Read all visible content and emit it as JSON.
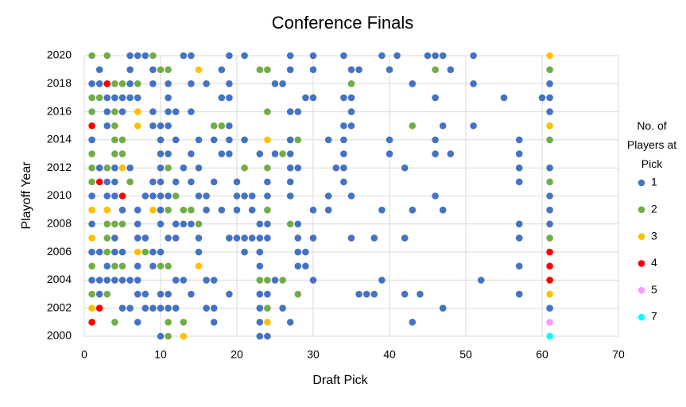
{
  "chart_data": {
    "type": "scatter",
    "title": "Conference Finals",
    "x_label": "Draft Pick",
    "y_label": "Playoff Year",
    "legend_title": "No. of Players at Pick",
    "xlim": [
      0,
      70
    ],
    "xticks": [
      0,
      10,
      20,
      30,
      40,
      50,
      60,
      70
    ],
    "ylim": [
      2000,
      2020
    ],
    "yticks": [
      2000,
      2002,
      2004,
      2006,
      2008,
      2010,
      2012,
      2014,
      2016,
      2018,
      2020
    ],
    "grid": true,
    "legend": "right",
    "series": [
      {
        "name": "1",
        "color": "#4472c4",
        "x": [
          6,
          7,
          8,
          13,
          14,
          19,
          21,
          27,
          30,
          34,
          39,
          41,
          45,
          46,
          47,
          51,
          2,
          6,
          9,
          18,
          27,
          30,
          35,
          36,
          40,
          48,
          1,
          2,
          6,
          9,
          11,
          14,
          16,
          19,
          25,
          26,
          43,
          51,
          61,
          3,
          4,
          5,
          6,
          7,
          11,
          18,
          19,
          29,
          30,
          34,
          35,
          46,
          55,
          60,
          61,
          3,
          5,
          9,
          11,
          12,
          14,
          27,
          28,
          35,
          61,
          3,
          9,
          10,
          11,
          19,
          34,
          35,
          47,
          51,
          1,
          10,
          12,
          15,
          17,
          19,
          21,
          27,
          32,
          34,
          40,
          46,
          57,
          10,
          11,
          14,
          18,
          19,
          23,
          25,
          27,
          34,
          40,
          46,
          48,
          57,
          2,
          4,
          6,
          10,
          13,
          15,
          27,
          28,
          33,
          34,
          42,
          57,
          61,
          3,
          4,
          9,
          10,
          12,
          14,
          17,
          20,
          24,
          27,
          34,
          57,
          1,
          3,
          4,
          8,
          9,
          10,
          11,
          15,
          16,
          20,
          21,
          22,
          24,
          27,
          32,
          35,
          46,
          61,
          5,
          7,
          10,
          16,
          18,
          20,
          22,
          30,
          32,
          39,
          43,
          47,
          61,
          1,
          7,
          10,
          12,
          13,
          14,
          23,
          24,
          28,
          57,
          61,
          4,
          7,
          8,
          11,
          12,
          15,
          19,
          20,
          21,
          22,
          23,
          24,
          28,
          30,
          35,
          38,
          42,
          57,
          1,
          2,
          4,
          5,
          9,
          10,
          15,
          21,
          23,
          28,
          29,
          3,
          7,
          9,
          23,
          28,
          29,
          57,
          1,
          2,
          3,
          4,
          5,
          6,
          7,
          12,
          13,
          16,
          17,
          25,
          30,
          39,
          52,
          2,
          7,
          8,
          10,
          11,
          14,
          19,
          23,
          24,
          36,
          37,
          38,
          42,
          44,
          57,
          5,
          6,
          8,
          9,
          10,
          11,
          12,
          16,
          17,
          23,
          26,
          47,
          61,
          7,
          17,
          23,
          27,
          43,
          10,
          23,
          24
        ],
        "values": [
          2020,
          2020,
          2020,
          2020,
          2020,
          2020,
          2020,
          2020,
          2020,
          2020,
          2020,
          2020,
          2020,
          2020,
          2020,
          2020,
          2019,
          2019,
          2019,
          2019,
          2019,
          2019,
          2019,
          2019,
          2019,
          2019,
          2018,
          2018,
          2018,
          2018,
          2018,
          2018,
          2018,
          2018,
          2018,
          2018,
          2018,
          2018,
          2018,
          2017,
          2017,
          2017,
          2017,
          2017,
          2017,
          2017,
          2017,
          2017,
          2017,
          2017,
          2017,
          2017,
          2017,
          2017,
          2017,
          2016,
          2016,
          2016,
          2016,
          2016,
          2016,
          2016,
          2016,
          2016,
          2016,
          2015,
          2015,
          2015,
          2015,
          2015,
          2015,
          2015,
          2015,
          2015,
          2014,
          2014,
          2014,
          2014,
          2014,
          2014,
          2014,
          2014,
          2014,
          2014,
          2014,
          2014,
          2014,
          2013,
          2013,
          2013,
          2013,
          2013,
          2013,
          2013,
          2013,
          2013,
          2013,
          2013,
          2013,
          2013,
          2012,
          2012,
          2012,
          2012,
          2012,
          2012,
          2012,
          2012,
          2012,
          2012,
          2012,
          2012,
          2012,
          2011,
          2011,
          2011,
          2011,
          2011,
          2011,
          2011,
          2011,
          2011,
          2011,
          2011,
          2011,
          2010,
          2010,
          2010,
          2010,
          2010,
          2010,
          2010,
          2010,
          2010,
          2010,
          2010,
          2010,
          2010,
          2010,
          2010,
          2010,
          2010,
          2010,
          2009,
          2009,
          2009,
          2009,
          2009,
          2009,
          2009,
          2009,
          2009,
          2009,
          2009,
          2009,
          2009,
          2008,
          2008,
          2008,
          2008,
          2008,
          2008,
          2008,
          2008,
          2008,
          2008,
          2008,
          2007,
          2007,
          2007,
          2007,
          2007,
          2007,
          2007,
          2007,
          2007,
          2007,
          2007,
          2007,
          2007,
          2007,
          2007,
          2007,
          2007,
          2007,
          2006,
          2006,
          2006,
          2006,
          2006,
          2006,
          2006,
          2006,
          2006,
          2006,
          2006,
          2005,
          2005,
          2005,
          2005,
          2005,
          2005,
          2005,
          2004,
          2004,
          2004,
          2004,
          2004,
          2004,
          2004,
          2004,
          2004,
          2004,
          2004,
          2004,
          2004,
          2004,
          2004,
          2003,
          2003,
          2003,
          2003,
          2003,
          2003,
          2003,
          2003,
          2003,
          2003,
          2003,
          2003,
          2003,
          2003,
          2003,
          2002,
          2002,
          2002,
          2002,
          2002,
          2002,
          2002,
          2002,
          2002,
          2002,
          2002,
          2002,
          2002,
          2001,
          2001,
          2001,
          2001,
          2001,
          2000,
          2000,
          2000
        ]
      },
      {
        "name": "2",
        "color": "#70ad47",
        "x": [
          1,
          3,
          9,
          10,
          11,
          23,
          24,
          46,
          61,
          4,
          5,
          7,
          35,
          1,
          2,
          1,
          4,
          24,
          4,
          17,
          18,
          43,
          4,
          5,
          28,
          61,
          1,
          4,
          5,
          26,
          1,
          3,
          11,
          21,
          24,
          1,
          6,
          61,
          12,
          11,
          13,
          14,
          24,
          3,
          4,
          5,
          15,
          27,
          3,
          61,
          3,
          8,
          1,
          4,
          5,
          10,
          11,
          23,
          24,
          26,
          1,
          3,
          28,
          24,
          4,
          11,
          13,
          11
        ],
        "values": [
          2020,
          2020,
          2020,
          2019,
          2019,
          2019,
          2019,
          2019,
          2019,
          2018,
          2018,
          2018,
          2018,
          2017,
          2017,
          2016,
          2016,
          2016,
          2015,
          2015,
          2015,
          2015,
          2014,
          2014,
          2014,
          2014,
          2013,
          2013,
          2013,
          2013,
          2012,
          2012,
          2012,
          2012,
          2012,
          2011,
          2011,
          2011,
          2010,
          2009,
          2009,
          2009,
          2009,
          2008,
          2008,
          2008,
          2008,
          2008,
          2007,
          2007,
          2006,
          2006,
          2005,
          2005,
          2005,
          2005,
          2005,
          2004,
          2004,
          2004,
          2003,
          2003,
          2003,
          2002,
          2001,
          2001,
          2001,
          2000
        ]
      },
      {
        "name": "3",
        "color": "#ffc000",
        "x": [
          61,
          15,
          7,
          7,
          61,
          24,
          5,
          1,
          3,
          9,
          1,
          7,
          15,
          61,
          1,
          24,
          13
        ],
        "values": [
          2020,
          2019,
          2016,
          2015,
          2015,
          2014,
          2012,
          2009,
          2009,
          2009,
          2007,
          2006,
          2005,
          2003,
          2002,
          2001,
          2000
        ]
      },
      {
        "name": "4",
        "color": "#ff0000",
        "x": [
          3,
          1,
          2,
          5,
          61,
          61,
          61,
          2,
          1
        ],
        "values": [
          2018,
          2015,
          2011,
          2010,
          2006,
          2005,
          2004,
          2002,
          2001
        ]
      },
      {
        "name": "5",
        "color": "#ff99ff",
        "x": [
          61
        ],
        "values": [
          2001
        ]
      },
      {
        "name": "7",
        "color": "#00ffff",
        "x": [
          61
        ],
        "values": [
          2000
        ]
      }
    ]
  }
}
